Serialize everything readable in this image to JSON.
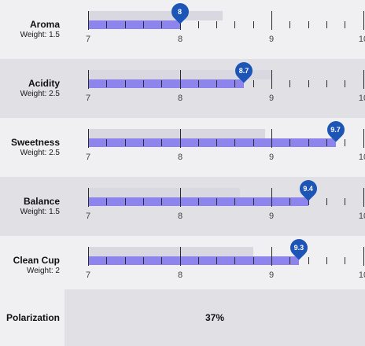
{
  "axis": {
    "min": 7,
    "max": 10,
    "tick_labels": [
      "7",
      "8",
      "9",
      "10"
    ]
  },
  "colors": {
    "bar_score": "#8e84ee",
    "bar_range": "#d9d8e0",
    "marker": "#1d55b6",
    "row_light": "#f0f0f2",
    "row_dark": "#e1e1e5"
  },
  "attributes": [
    {
      "name": "Aroma",
      "weight": "Weight: 1.5",
      "score": 8,
      "score_label": "8",
      "range_value": 8.47
    },
    {
      "name": "Acidity",
      "weight": "Weight: 2.5",
      "score": 8.7,
      "score_label": "8.7",
      "range_value": 9
    },
    {
      "name": "Sweetness",
      "weight": "Weight: 2.5",
      "score": 9.7,
      "score_label": "9.7",
      "range_value": 8.93
    },
    {
      "name": "Balance",
      "weight": "Weight: 1.5",
      "score": 9.4,
      "score_label": "9.4",
      "range_value": 8.66
    },
    {
      "name": "Clean Cup",
      "weight": "Weight: 2",
      "score": 9.3,
      "score_label": "9.3",
      "range_value": 8.8
    }
  ],
  "polarization": {
    "label": "Polarization",
    "value": "37%"
  }
}
